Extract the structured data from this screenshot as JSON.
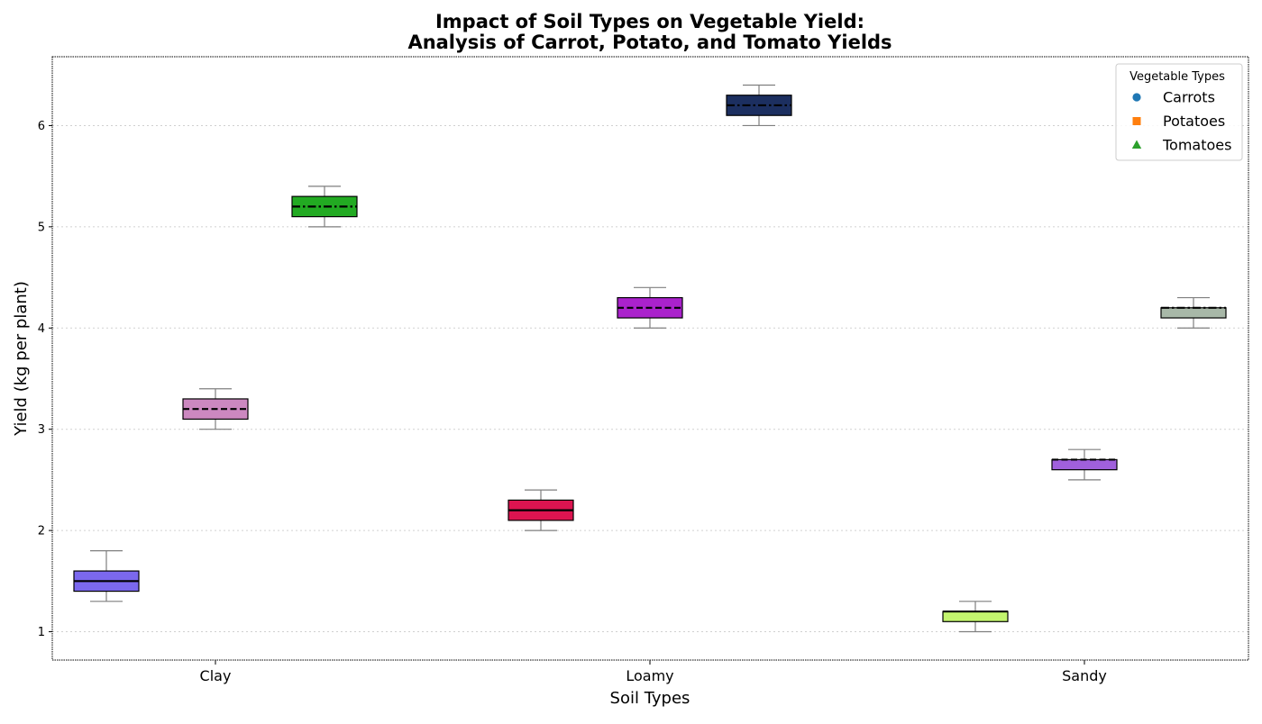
{
  "chart_data": {
    "type": "box",
    "title": "Impact of Soil Types on Vegetable Yield:",
    "subtitle": "Analysis of Carrot, Potato, and Tomato Yields",
    "xlabel": "Soil Types",
    "ylabel": "Yield (kg per plant)",
    "categories": [
      "Clay",
      "Loamy",
      "Sandy"
    ],
    "ylim": [
      0.72,
      6.68
    ],
    "yticks": [
      1,
      2,
      3,
      4,
      5,
      6
    ],
    "grid": true,
    "legend": {
      "title": "Vegetable Types",
      "placement": "top-right",
      "entries": [
        {
          "label": "Carrots",
          "marker": "circle",
          "color": "#1f77b4"
        },
        {
          "label": "Potatoes",
          "marker": "square",
          "color": "#ff7f0e"
        },
        {
          "label": "Tomatoes",
          "marker": "triangle",
          "color": "#2ca02c"
        }
      ]
    },
    "series": [
      {
        "vegetable": "Carrots",
        "median_style": "solid",
        "boxes": [
          {
            "category": "Clay",
            "min": 1.3,
            "q1": 1.4,
            "median": 1.5,
            "q3": 1.6,
            "max": 1.8,
            "color": "#7b68ee"
          },
          {
            "category": "Loamy",
            "min": 2.0,
            "q1": 2.1,
            "median": 2.2,
            "q3": 2.3,
            "max": 2.4,
            "color": "#dc1450"
          },
          {
            "category": "Sandy",
            "min": 1.0,
            "q1": 1.1,
            "median": 1.2,
            "q3": 1.2,
            "max": 1.3,
            "color": "#c3f56e"
          }
        ]
      },
      {
        "vegetable": "Potatoes",
        "median_style": "dashed",
        "boxes": [
          {
            "category": "Clay",
            "min": 3.0,
            "q1": 3.1,
            "median": 3.2,
            "q3": 3.3,
            "max": 3.4,
            "color": "#cc88c0"
          },
          {
            "category": "Loamy",
            "min": 4.0,
            "q1": 4.1,
            "median": 4.2,
            "q3": 4.3,
            "max": 4.4,
            "color": "#aa22cc"
          },
          {
            "category": "Sandy",
            "min": 2.5,
            "q1": 2.6,
            "median": 2.7,
            "q3": 2.7,
            "max": 2.8,
            "color": "#a060dc"
          }
        ]
      },
      {
        "vegetable": "Tomatoes",
        "median_style": "dashdot",
        "boxes": [
          {
            "category": "Clay",
            "min": 5.0,
            "q1": 5.1,
            "median": 5.2,
            "q3": 5.3,
            "max": 5.4,
            "color": "#22aa22"
          },
          {
            "category": "Loamy",
            "min": 6.0,
            "q1": 6.1,
            "median": 6.2,
            "q3": 6.3,
            "max": 6.4,
            "color": "#1c2f60"
          },
          {
            "category": "Sandy",
            "min": 4.0,
            "q1": 4.1,
            "median": 4.2,
            "q3": 4.2,
            "max": 4.3,
            "color": "#a8b8a8"
          }
        ]
      }
    ]
  }
}
